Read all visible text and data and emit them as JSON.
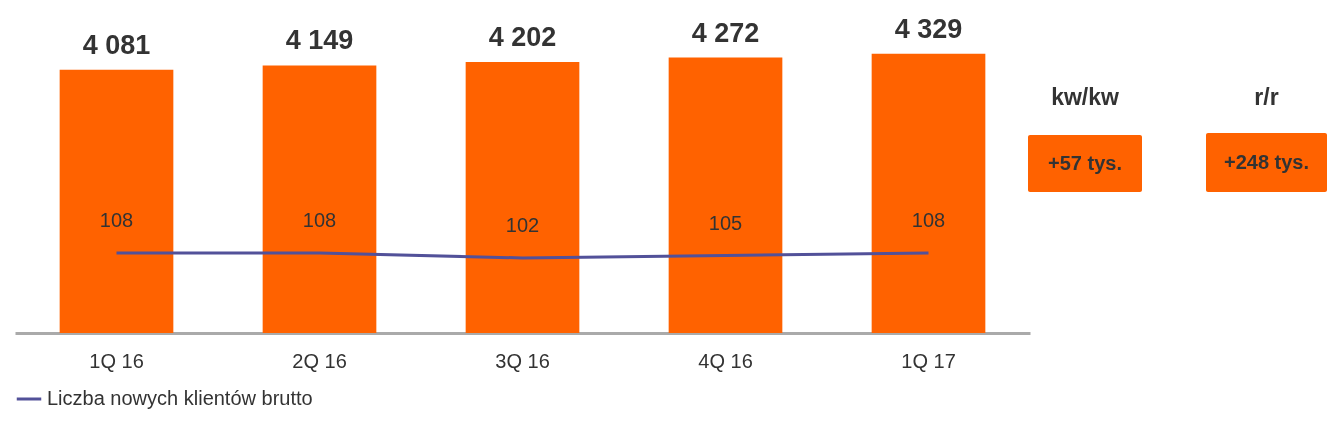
{
  "chart_data": {
    "type": "bar",
    "categories": [
      "1Q 16",
      "2Q 16",
      "3Q 16",
      "4Q 16",
      "1Q 17"
    ],
    "series": [
      {
        "color": "#ff6200",
        "values": [
          4081,
          4149,
          4202,
          4272,
          4329
        ],
        "value_labels": [
          "4 081",
          "4 149",
          "4 202",
          "4 272",
          "4 329"
        ]
      },
      {
        "type": "line",
        "axis": "y2",
        "name": "Liczba nowych klientów brutto",
        "color": "#525199",
        "values": [
          108,
          108,
          102,
          105,
          108
        ],
        "value_labels": [
          "108",
          "108",
          "102",
          "105",
          "108"
        ]
      }
    ],
    "annotations": [
      "kw/kw",
      "+57 tys.",
      "r/r",
      "+248 tys."
    ],
    "legend": "bottom",
    "grid": false,
    "marker": "none",
    "line_style": "solid"
  }
}
